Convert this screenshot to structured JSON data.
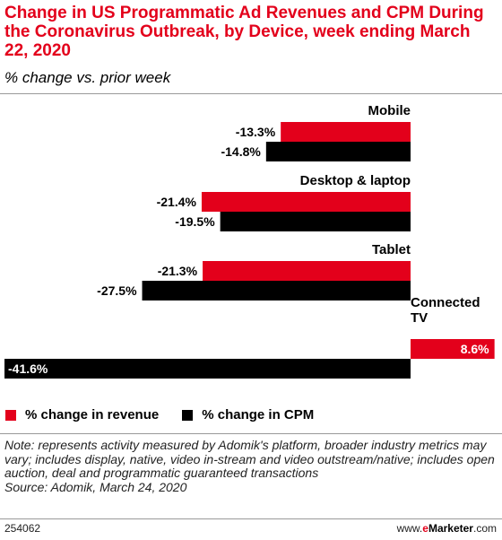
{
  "title": "Change in US Programmatic Ad Revenues and CPM During the Coronavirus Outbreak, by Device, week ending March 22, 2020",
  "subtitle": "% change vs. prior week",
  "colors": {
    "revenue": "#e3001b",
    "cpm": "#000000",
    "title": "#e3001b"
  },
  "chart_data": {
    "type": "bar",
    "orientation": "horizontal",
    "categories": [
      "Mobile",
      "Desktop & laptop",
      "Tablet",
      "Connected TV"
    ],
    "series": [
      {
        "name": "% change in revenue",
        "values": [
          -13.3,
          -21.4,
          -21.3,
          8.6
        ]
      },
      {
        "name": "% change in CPM",
        "values": [
          -14.8,
          -19.5,
          -27.5,
          -41.6
        ]
      }
    ],
    "data_labels": [
      [
        "-13.3%",
        "-14.8%"
      ],
      [
        "-21.4%",
        "-19.5%"
      ],
      [
        "-21.3%",
        "-27.5%"
      ],
      [
        "8.6%",
        "-41.6%"
      ]
    ],
    "xlim": [
      -41.6,
      8.6
    ],
    "legend_position": "bottom-left",
    "grid": false
  },
  "legend": {
    "revenue": "% change in revenue",
    "cpm": "% change in CPM"
  },
  "note": {
    "text": "Note: represents activity measured by Adomik's platform, broader industry metrics may vary; includes display, native, video in-stream and video outstream/native; includes open auction, deal and programmatic guaranteed transactions",
    "source": "Source: Adomik, March 24, 2020"
  },
  "footer": {
    "id": "254062",
    "brand_prefix": "www.",
    "brand_e": "e",
    "brand_rest": "Marketer",
    "brand_suffix": ".com"
  }
}
